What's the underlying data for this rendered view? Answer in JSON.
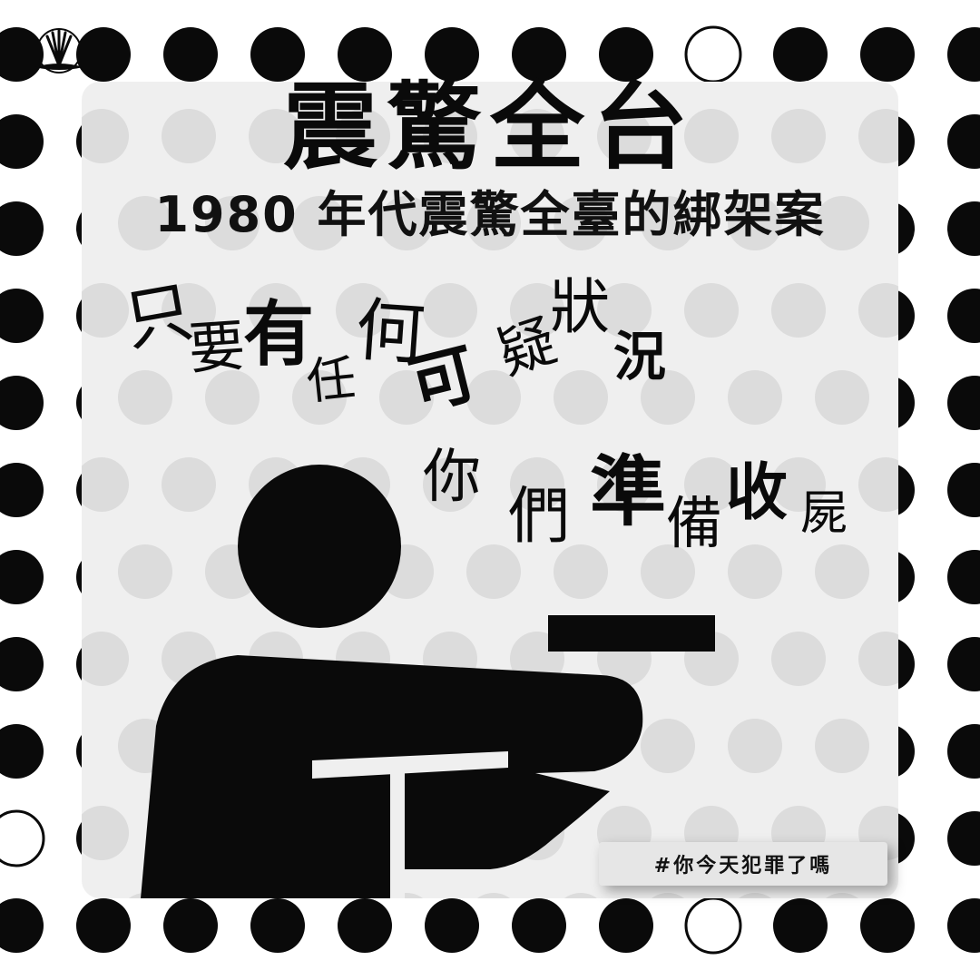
{
  "title": "震驚全台",
  "subtitle": "1980 年代震驚全臺的綁架案",
  "phrase_line1": [
    "只",
    "要",
    "有",
    "任",
    "何",
    "可",
    "疑",
    "狀",
    "況"
  ],
  "phrase_line2": [
    "你",
    "們",
    "準",
    "備",
    "收",
    "屍"
  ],
  "hashtag": "#你今天犯罪了嗎",
  "colors": {
    "ink": "#0a0a0a",
    "panel": "#efefef",
    "panel_dots": "#dcdcdc",
    "background": "#ffffff"
  },
  "icons": {
    "logo": "fan-logo-icon",
    "figure": "person-pointing-gun-icon"
  }
}
